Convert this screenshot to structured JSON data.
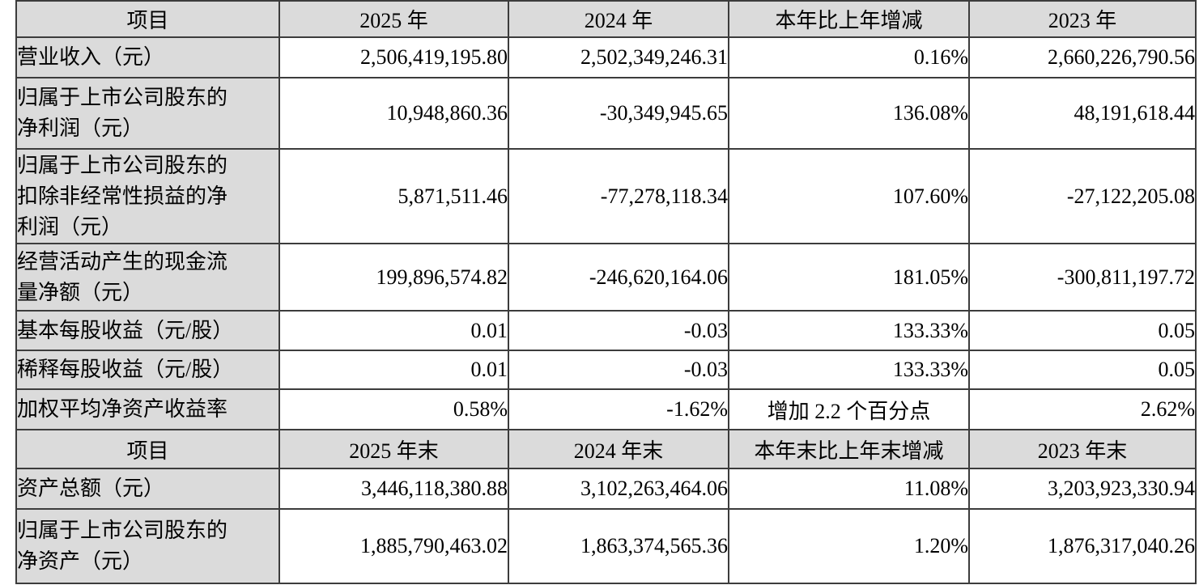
{
  "page": {
    "background": "#ffffff",
    "text_color": "#000000",
    "grid_color": "#3c3c3c",
    "shaded_cell_color": "#dbdbdb"
  },
  "table": {
    "sections": [
      {
        "header": [
          "项目",
          "2025 年",
          "2024 年",
          "本年比上年增减",
          "2023 年"
        ],
        "rows": [
          {
            "label_lines": [
              "营业收入（元）"
            ],
            "values": [
              "2,506,419,195.80",
              "2,502,349,246.31",
              "0.16%",
              "2,660,226,790.56"
            ],
            "change_align": "right"
          },
          {
            "label_lines": [
              "归属于上市公司股东的",
              "净利润（元）"
            ],
            "values": [
              "10,948,860.36",
              "-30,349,945.65",
              "136.08%",
              "48,191,618.44"
            ],
            "change_align": "right"
          },
          {
            "label_lines": [
              "归属于上市公司股东的",
              "扣除非经常性损益的净",
              "利润（元）"
            ],
            "values": [
              "5,871,511.46",
              "-77,278,118.34",
              "107.60%",
              "-27,122,205.08"
            ],
            "change_align": "right"
          },
          {
            "label_lines": [
              "经营活动产生的现金流",
              "量净额（元）"
            ],
            "values": [
              "199,896,574.82",
              "-246,620,164.06",
              "181.05%",
              "-300,811,197.72"
            ],
            "change_align": "right"
          },
          {
            "label_lines": [
              "基本每股收益（元/股）"
            ],
            "values": [
              "0.01",
              "-0.03",
              "133.33%",
              "0.05"
            ],
            "change_align": "right"
          },
          {
            "label_lines": [
              "稀释每股收益（元/股）"
            ],
            "values": [
              "0.01",
              "-0.03",
              "133.33%",
              "0.05"
            ],
            "change_align": "right"
          },
          {
            "label_lines": [
              "加权平均净资产收益率"
            ],
            "values": [
              "0.58%",
              "-1.62%",
              "增加 2.2 个百分点",
              "2.62%"
            ],
            "change_align": "center"
          }
        ]
      },
      {
        "header": [
          "项目",
          "2025 年末",
          "2024 年末",
          "本年末比上年末增减",
          "2023 年末"
        ],
        "rows": [
          {
            "label_lines": [
              "资产总额（元）"
            ],
            "values": [
              "3,446,118,380.88",
              "3,102,263,464.06",
              "11.08%",
              "3,203,923,330.94"
            ],
            "change_align": "right"
          },
          {
            "label_lines": [
              "归属于上市公司股东的",
              "净资产（元）"
            ],
            "values": [
              "1,885,790,463.02",
              "1,863,374,565.36",
              "1.20%",
              "1,876,317,040.26"
            ],
            "change_align": "right"
          }
        ]
      }
    ]
  }
}
